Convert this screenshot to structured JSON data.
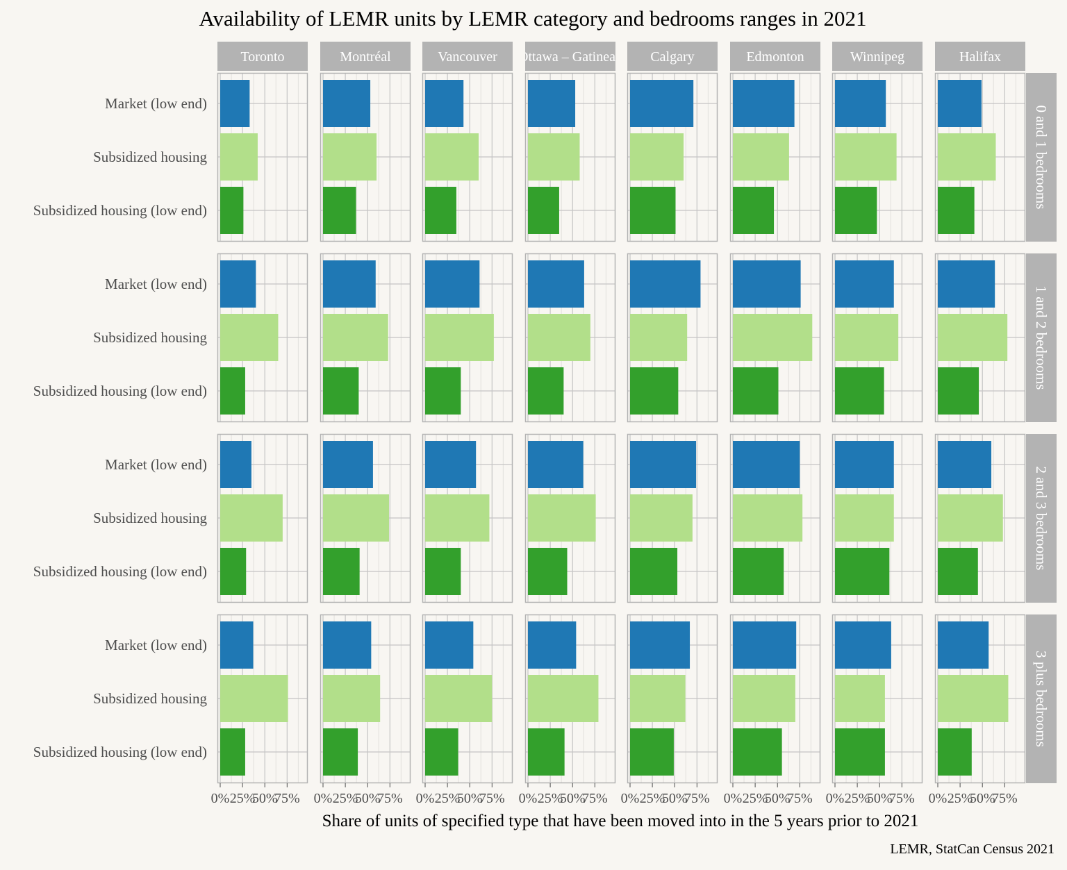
{
  "chart_data": {
    "type": "bar",
    "orientation": "horizontal",
    "title": "Availability of LEMR units by LEMR category and bedrooms ranges in 2021",
    "xlabel": "Share of units of specified type that have been moved into in the 5 years prior to 2021",
    "caption": "LEMR, StatCan Census 2021",
    "xlim": [
      0,
      0.95
    ],
    "xticks": [
      "0%",
      "25%",
      "50%",
      "75%"
    ],
    "grid": true,
    "facet_columns": [
      "Toronto",
      "Montréal",
      "Vancouver",
      "Ottawa – Gatineau",
      "Calgary",
      "Edmonton",
      "Winnipeg",
      "Halifax"
    ],
    "facet_rows": [
      "0 and 1 bedrooms",
      "1 and 2 bedrooms",
      "2 and 3 bedrooms",
      "3 plus bedrooms"
    ],
    "categories": [
      "Market (low end)",
      "Subsidized housing",
      "Subsidized housing (low end)"
    ],
    "colors": {
      "Market (low end)": "#1f78b4",
      "Subsidized housing": "#b2df8a",
      "Subsidized housing (low end)": "#33a02c"
    },
    "values": [
      [
        [
          0.33,
          0.42,
          0.26
        ],
        [
          0.53,
          0.6,
          0.37
        ],
        [
          0.43,
          0.6,
          0.35
        ],
        [
          0.53,
          0.58,
          0.35
        ],
        [
          0.71,
          0.6,
          0.51
        ],
        [
          0.69,
          0.63,
          0.46
        ],
        [
          0.57,
          0.69,
          0.47
        ],
        [
          0.49,
          0.65,
          0.41
        ]
      ],
      [
        [
          0.4,
          0.65,
          0.28
        ],
        [
          0.59,
          0.73,
          0.4
        ],
        [
          0.61,
          0.77,
          0.4
        ],
        [
          0.63,
          0.7,
          0.4
        ],
        [
          0.79,
          0.64,
          0.54
        ],
        [
          0.76,
          0.89,
          0.51
        ],
        [
          0.66,
          0.71,
          0.55
        ],
        [
          0.64,
          0.78,
          0.46
        ]
      ],
      [
        [
          0.35,
          0.7,
          0.29
        ],
        [
          0.56,
          0.74,
          0.41
        ],
        [
          0.57,
          0.72,
          0.4
        ],
        [
          0.62,
          0.76,
          0.44
        ],
        [
          0.74,
          0.7,
          0.53
        ],
        [
          0.75,
          0.78,
          0.57
        ],
        [
          0.66,
          0.66,
          0.61
        ],
        [
          0.6,
          0.73,
          0.45
        ]
      ],
      [
        [
          0.37,
          0.76,
          0.28
        ],
        [
          0.54,
          0.64,
          0.39
        ],
        [
          0.54,
          0.75,
          0.37
        ],
        [
          0.54,
          0.79,
          0.41
        ],
        [
          0.67,
          0.62,
          0.49
        ],
        [
          0.71,
          0.7,
          0.55
        ],
        [
          0.63,
          0.56,
          0.56
        ],
        [
          0.57,
          0.79,
          0.38
        ]
      ]
    ]
  }
}
